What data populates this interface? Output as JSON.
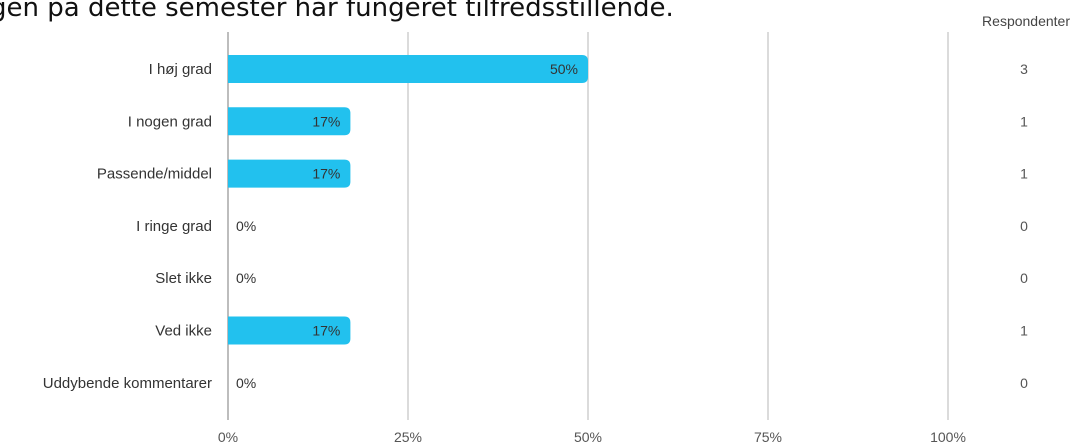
{
  "title": "gen på dette semester har fungeret tilfredsstillende.",
  "header": {
    "count_label": "Respondenter"
  },
  "colors": {
    "bar": "#22c1ee",
    "gridline": "#cfcfcf"
  },
  "chart_data": {
    "type": "bar",
    "orientation": "horizontal",
    "categories": [
      "I høj grad",
      "I nogen grad",
      "Passende/middel",
      "I ringe grad",
      "Slet ikke",
      "Ved ikke",
      "Uddybende kommentarer"
    ],
    "values": [
      50,
      17,
      17,
      0,
      0,
      17,
      0
    ],
    "value_labels": [
      "50%",
      "17%",
      "17%",
      "0%",
      "0%",
      "17%",
      "0%"
    ],
    "respondents": [
      3,
      1,
      1,
      0,
      0,
      1,
      0
    ],
    "x_ticks": [
      "0%",
      "25%",
      "50%",
      "75%",
      "100%"
    ],
    "xlim": [
      0,
      100
    ],
    "grid": true
  }
}
